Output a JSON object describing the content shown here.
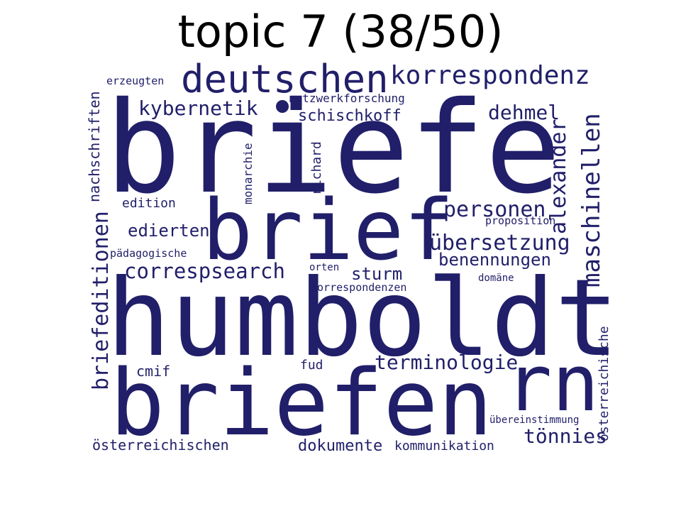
{
  "title": "topic 7 (38/50)",
  "chart_data": {
    "type": "wordcloud",
    "color": "#211f69",
    "words": [
      {
        "text": "briefe",
        "weight": 1.0
      },
      {
        "text": "humboldt",
        "weight": 0.9
      },
      {
        "text": "briefen",
        "weight": 0.75
      },
      {
        "text": "brief",
        "weight": 0.7
      },
      {
        "text": "rn",
        "weight": 0.5
      },
      {
        "text": "deutschen",
        "weight": 0.3
      },
      {
        "text": "korrespondenz",
        "weight": 0.22
      },
      {
        "text": "maschinellen",
        "weight": 0.22
      },
      {
        "text": "alexander",
        "weight": 0.2
      },
      {
        "text": "übersetzung",
        "weight": 0.18
      },
      {
        "text": "briefeditionen",
        "weight": 0.18
      },
      {
        "text": "personen",
        "weight": 0.17
      },
      {
        "text": "correspsearch",
        "weight": 0.16
      },
      {
        "text": "terminologie",
        "weight": 0.16
      },
      {
        "text": "kybernetik",
        "weight": 0.16
      },
      {
        "text": "dehmel",
        "weight": 0.16
      },
      {
        "text": "tönnies",
        "weight": 0.15
      },
      {
        "text": "edierten",
        "weight": 0.14
      },
      {
        "text": "benennungen",
        "weight": 0.14
      },
      {
        "text": "sturm",
        "weight": 0.14
      },
      {
        "text": "dokumente",
        "weight": 0.13
      },
      {
        "text": "schischkoff",
        "weight": 0.13
      },
      {
        "text": "nachschriften",
        "weight": 0.12
      },
      {
        "text": "österreichischen",
        "weight": 0.12
      },
      {
        "text": "cmif",
        "weight": 0.12
      },
      {
        "text": "österreichische",
        "weight": 0.11
      },
      {
        "text": "kommunikation",
        "weight": 0.11
      },
      {
        "text": "edition",
        "weight": 0.11
      },
      {
        "text": "richard",
        "weight": 0.11
      },
      {
        "text": "fud",
        "weight": 0.11
      },
      {
        "text": "monarchie",
        "weight": 0.1
      },
      {
        "text": "netzwerkforschung",
        "weight": 0.1
      },
      {
        "text": "pädagogische",
        "weight": 0.09
      },
      {
        "text": "korrespondenzen",
        "weight": 0.09
      },
      {
        "text": "erzeugten",
        "weight": 0.09
      },
      {
        "text": "proposition",
        "weight": 0.09
      },
      {
        "text": "übereinstimmung",
        "weight": 0.08
      },
      {
        "text": "orten",
        "weight": 0.08
      },
      {
        "text": "domäne",
        "weight": 0.08
      }
    ]
  }
}
